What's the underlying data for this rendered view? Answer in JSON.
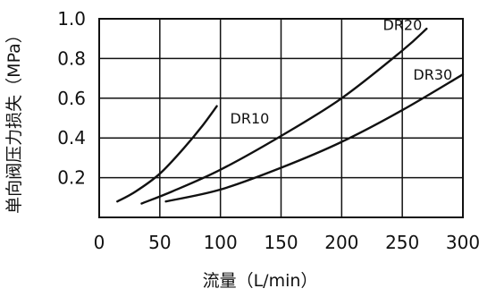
{
  "chart_data": {
    "type": "line",
    "title": "",
    "xlabel": "流量（L/min）",
    "ylabel": "单向阀压力损失（MPa）",
    "xlim": [
      0,
      300
    ],
    "ylim": [
      0,
      1.0
    ],
    "x_ticks": [
      0,
      50,
      100,
      150,
      200,
      250,
      300
    ],
    "x_tick_labels": [
      "0",
      "50",
      "100",
      "150",
      "200",
      "250",
      "300"
    ],
    "y_ticks": [
      0.2,
      0.4,
      0.6,
      0.8,
      1.0
    ],
    "y_tick_labels": [
      "0.2",
      "0.4",
      "0.6",
      "0.8",
      "1.0"
    ],
    "grid": true,
    "legend": "none",
    "series": [
      {
        "name": "DR10",
        "x": [
          15,
          30,
          50,
          70,
          85,
          97
        ],
        "y": [
          0.08,
          0.13,
          0.22,
          0.35,
          0.46,
          0.56
        ]
      },
      {
        "name": "DR20",
        "x": [
          35,
          60,
          100,
          150,
          200,
          250,
          270
        ],
        "y": [
          0.07,
          0.13,
          0.24,
          0.41,
          0.6,
          0.84,
          0.95
        ]
      },
      {
        "name": "DR30",
        "x": [
          55,
          100,
          150,
          200,
          250,
          300
        ],
        "y": [
          0.08,
          0.14,
          0.25,
          0.38,
          0.54,
          0.72
        ]
      }
    ],
    "series_label_at": [
      {
        "x": 108,
        "y": 0.5
      },
      {
        "x": 234,
        "y": 0.97
      },
      {
        "x": 259,
        "y": 0.72
      }
    ]
  }
}
